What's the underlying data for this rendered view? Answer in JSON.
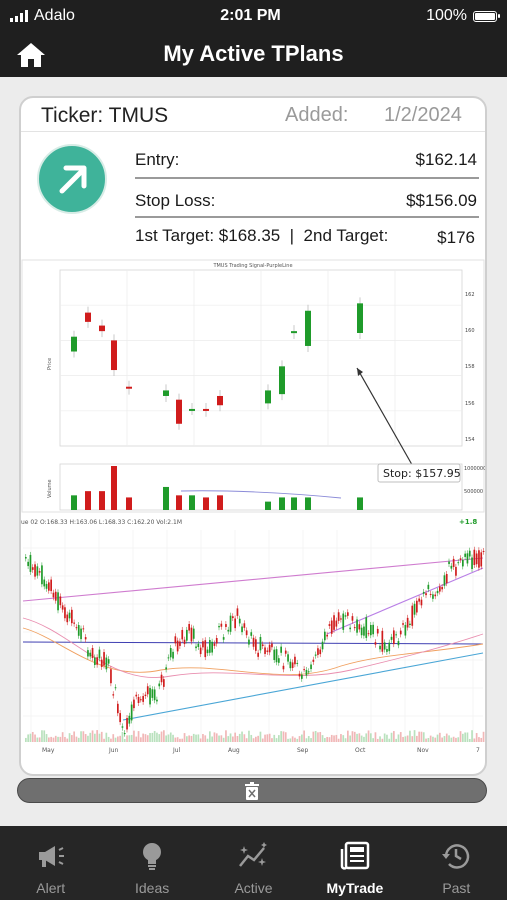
{
  "status_bar": {
    "carrier": "Adalo",
    "time": "2:01 PM",
    "battery": "100%"
  },
  "header": {
    "title": "My Active TPlans",
    "home_icon": "home-icon"
  },
  "plan": {
    "ticker_label": "Ticker: TMUS",
    "added_label": "Added:",
    "added_date": "1/2/2024",
    "trend_icon": "arrow-up-right-icon",
    "entry_label": "Entry:",
    "entry_value": "$162.14",
    "stop_label": "Stop Loss:",
    "stop_value": "$$156.09",
    "target_line": "1st Target: $168.35  |  2nd Target:",
    "target2_value": "$176"
  },
  "signal_chart": {
    "title": "TMUS Trading Signal-PurpleLine",
    "y_axis_label": "Price",
    "volume_label": "Volume",
    "stop_annotation": "Stop: $157.95",
    "price_ticks": [
      "162",
      "160",
      "158",
      "156",
      "154"
    ],
    "volume_ticks": [
      "1000000",
      "500000"
    ]
  },
  "chart_data": [
    {
      "type": "bar",
      "title": "TMUS Trading Signal-PurpleLine",
      "ylabel": "Price",
      "ylim": [
        153.5,
        163
      ],
      "series": [
        {
          "name": "open",
          "values": [
            158.6,
            160.7,
            160,
            159.2,
            156.7,
            156.2,
            156,
            155.5,
            155.5,
            156.2,
            155.8,
            156.3,
            159.6,
            158.9,
            159.6,
            161.3
          ]
        },
        {
          "name": "close",
          "values": [
            159.4,
            160.2,
            159.7,
            157.6,
            156.6,
            156.5,
            154.7,
            155.5,
            155.4,
            155.7,
            156.5,
            157.8,
            159.7,
            160.8,
            161.2,
            162.2
          ]
        },
        {
          "name": "volume",
          "values": [
            350000,
            450000,
            450000,
            1050000,
            300000,
            550000,
            350000,
            350000,
            300000,
            350000,
            200000,
            300000,
            300000,
            300000,
            300000,
            400000
          ]
        }
      ]
    },
    {
      "type": "line",
      "title": "",
      "x_tick_labels": [
        "May",
        "Jun",
        "Jul",
        "Aug",
        "Sep",
        "Oct",
        "Nov",
        "7"
      ],
      "series": [
        {
          "name": "price",
          "values": [
            163.5,
            162.4,
            160.6,
            159.2,
            157.3,
            156.6,
            152.3,
            154.8,
            154.1,
            157.5,
            158.6,
            157.5,
            158.6,
            159.6,
            157.6,
            157.7,
            156.6,
            156.1,
            157.5,
            159.7,
            159.1,
            158.9,
            157.8,
            158.4,
            160.5,
            161.4,
            162.8,
            163.3,
            163.5
          ]
        }
      ]
    }
  ],
  "main_chart": {
    "header_left": "ue 02   O:168.33  H:163.06  L:168.33  C:162.20    Vol:2.1M",
    "change": "+1.8",
    "months": [
      "May",
      "Jun",
      "Jul",
      "Aug",
      "Sep",
      "Oct",
      "Nov",
      "7"
    ]
  },
  "delete_icon": "trash-icon",
  "nav": [
    {
      "label": "Alert",
      "icon": "megaphone-icon"
    },
    {
      "label": "Ideas",
      "icon": "lightbulb-icon"
    },
    {
      "label": "Active",
      "icon": "sparkline-icon"
    },
    {
      "label": "MyTrade",
      "icon": "news-icon"
    },
    {
      "label": "Past",
      "icon": "history-icon"
    }
  ],
  "colors": {
    "up": "#1f9b2a",
    "down": "#d01c1c",
    "badge": "#3fb39a",
    "bar": "#262626"
  }
}
